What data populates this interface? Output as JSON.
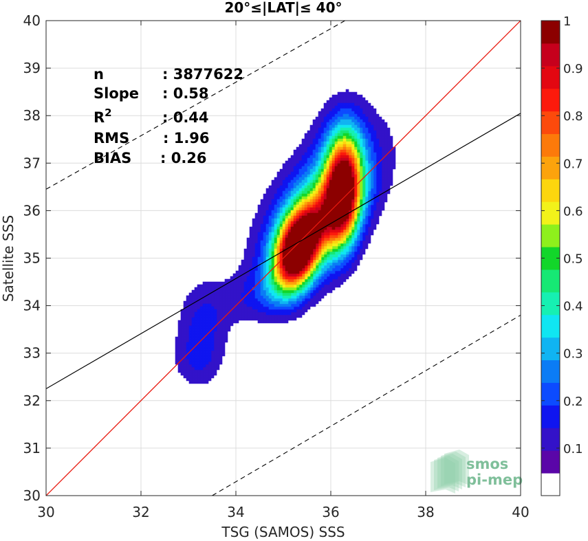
{
  "chart_data": {
    "type": "contour",
    "title": "20°≤|LAT|≤ 40°",
    "xlabel": "TSG (SAMOS) SSS",
    "ylabel": "Satellite SSS",
    "xlim": [
      30,
      40
    ],
    "ylim": [
      30,
      40
    ],
    "xticks": [
      30,
      32,
      34,
      36,
      38,
      40
    ],
    "yticks": [
      30,
      31,
      32,
      33,
      34,
      35,
      36,
      37,
      38,
      39,
      40
    ],
    "grid": true,
    "stats": [
      {
        "key": "n",
        "sep": ": ",
        "value": "3877622"
      },
      {
        "key": "Slope",
        "sep": ": ",
        "value": "0.58"
      },
      {
        "key": "R",
        "sup": "2",
        "sep": ": ",
        "value": "0.44"
      },
      {
        "key": "RMS",
        "sep": ": ",
        "value": "1.96"
      },
      {
        "key": "BIAS",
        "sep": ": ",
        "value": "0.26"
      }
    ],
    "lines": {
      "one_to_one": {
        "color": "#e8190e",
        "slope": 1,
        "intercept": 0
      },
      "regression": {
        "color": "#000000",
        "slope": 0.58,
        "x0": 30,
        "y0": 32.25
      },
      "upper_bound": {
        "color": "#000000",
        "style": "dashed",
        "from": [
          30,
          36.45
        ],
        "to": [
          36.3,
          40
        ]
      },
      "lower_bound": {
        "color": "#000000",
        "style": "dashed",
        "from": [
          33.5,
          30
        ],
        "to": [
          40,
          33.8
        ]
      }
    },
    "density_peaks": [
      {
        "x": 35.3,
        "y": 35.15,
        "value": 1.0
      },
      {
        "x": 36.25,
        "y": 36.4,
        "value": 0.9
      }
    ],
    "colorbar": {
      "min": 0,
      "max": 1,
      "tick_labels": [
        "0.1",
        "0.2",
        "0.3",
        "0.4",
        "0.5",
        "0.6",
        "0.7",
        "0.8",
        "0.9",
        "1"
      ],
      "tick_values": [
        0.1,
        0.2,
        0.3,
        0.4,
        0.5,
        0.6,
        0.7,
        0.8,
        0.9,
        1.0
      ],
      "colors": [
        "#ffffff",
        "#5a06a8",
        "#3312c9",
        "#0f15f0",
        "#0c4bff",
        "#0b7cf5",
        "#10b4f2",
        "#10e6f2",
        "#16f0b2",
        "#16e874",
        "#12d62a",
        "#8ef01c",
        "#f2f21a",
        "#fcd60e",
        "#fca30c",
        "#fc7a0a",
        "#fc4a0c",
        "#fc1a0c",
        "#e30711",
        "#c6001c",
        "#8c0000"
      ]
    }
  },
  "logo": {
    "line1": "smos",
    "line2": "pi-mep"
  }
}
